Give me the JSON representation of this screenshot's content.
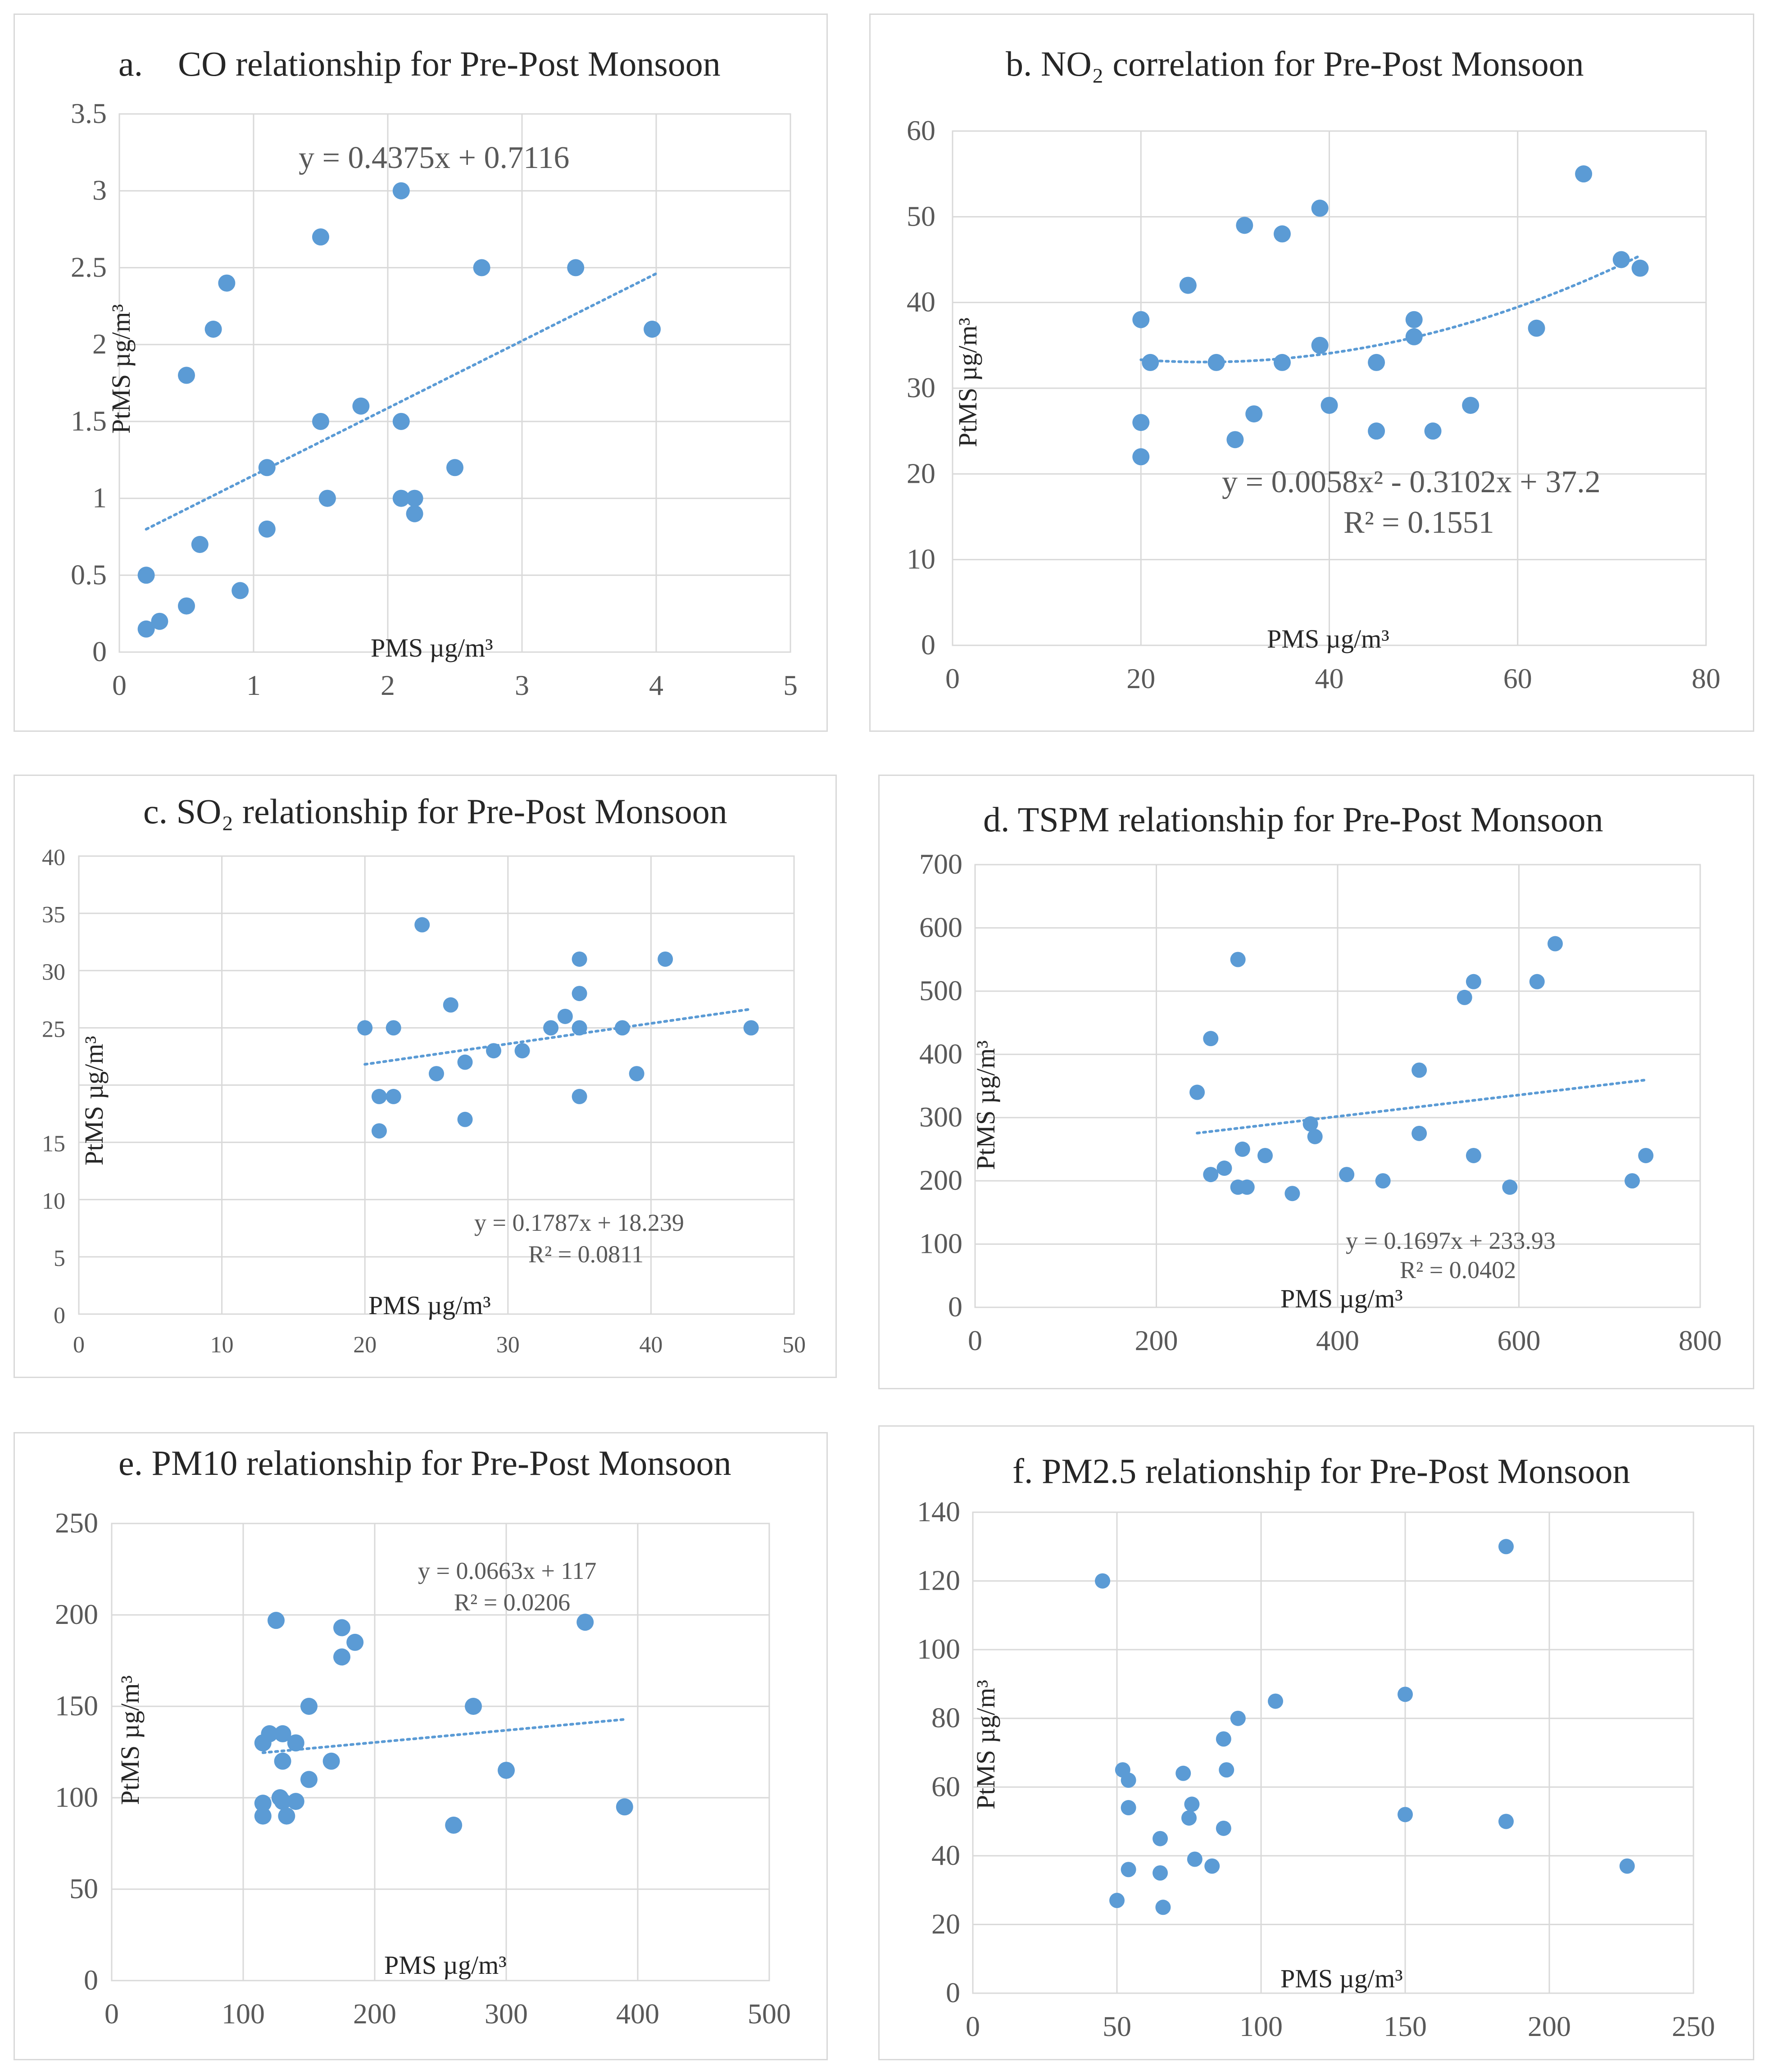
{
  "chart_data": [
    {
      "id": "a",
      "type": "scatter",
      "title": "a.    CO relationship for Pre-Post Monsoon",
      "xlabel": "PMS µg/m³",
      "ylabel": "PtMS µg/m³",
      "xlim": [
        0,
        5
      ],
      "ylim": [
        0,
        3.5
      ],
      "xticks": [
        0,
        1,
        2,
        3,
        4,
        5
      ],
      "yticks": [
        0,
        0.5,
        1,
        1.5,
        2,
        2.5,
        3,
        3.5
      ],
      "xtick_labels": [
        "0",
        "1",
        "2",
        "3",
        "4",
        "5"
      ],
      "ytick_labels": [
        "0",
        "0.5",
        "1",
        "1.5",
        "2",
        "2.5",
        "3",
        "3.5"
      ],
      "trendline": {
        "kind": "linear",
        "coef": [
          0.4375,
          0.7116
        ],
        "x_range": [
          0.2,
          4
        ]
      },
      "equation": "y = 0.4375x + 0.7116",
      "r2": "",
      "points": [
        [
          0.2,
          0.15
        ],
        [
          0.3,
          0.2
        ],
        [
          0.2,
          0.5
        ],
        [
          0.5,
          0.3
        ],
        [
          0.6,
          0.7
        ],
        [
          0.9,
          0.4
        ],
        [
          0.5,
          1.8
        ],
        [
          0.7,
          2.1
        ],
        [
          0.8,
          2.4
        ],
        [
          1.1,
          0.8
        ],
        [
          1.1,
          1.2
        ],
        [
          1.5,
          1.5
        ],
        [
          1.5,
          2.7
        ],
        [
          1.55,
          1.0
        ],
        [
          1.8,
          1.6
        ],
        [
          2.1,
          3.0
        ],
        [
          2.1,
          1.5
        ],
        [
          2.1,
          1.0
        ],
        [
          2.2,
          1.0
        ],
        [
          2.2,
          0.9
        ],
        [
          2.5,
          1.2
        ],
        [
          2.7,
          2.5
        ],
        [
          3.4,
          2.5
        ],
        [
          3.97,
          2.1
        ]
      ]
    },
    {
      "id": "b",
      "type": "scatter",
      "title": "b. NO₂ correlation for Pre-Post Monsoon",
      "xlabel": "PMS µg/m³",
      "ylabel": "PtMS µg/m³",
      "xlim": [
        0,
        80
      ],
      "ylim": [
        0,
        60
      ],
      "xticks": [
        0,
        20,
        40,
        60,
        80
      ],
      "yticks": [
        0,
        10,
        20,
        30,
        40,
        50,
        60
      ],
      "xtick_labels": [
        "0",
        "20",
        "40",
        "60",
        "80"
      ],
      "ytick_labels": [
        "0",
        "10",
        "20",
        "30",
        "40",
        "50",
        "60"
      ],
      "trendline": {
        "kind": "poly2",
        "coef": [
          0.0058,
          -0.3102,
          37.2
        ],
        "x_range": [
          20,
          73
        ]
      },
      "equation": "y = 0.0058x² - 0.3102x + 37.2",
      "r2": "R² = 0.1551",
      "points": [
        [
          20,
          38
        ],
        [
          20,
          26
        ],
        [
          20,
          22
        ],
        [
          21,
          33
        ],
        [
          25,
          42
        ],
        [
          28,
          33
        ],
        [
          30,
          24
        ],
        [
          31,
          49
        ],
        [
          32,
          27
        ],
        [
          35,
          48
        ],
        [
          35,
          33
        ],
        [
          39,
          51
        ],
        [
          39,
          35
        ],
        [
          40,
          28
        ],
        [
          45,
          33
        ],
        [
          45,
          25
        ],
        [
          49,
          38
        ],
        [
          49,
          36
        ],
        [
          51,
          25
        ],
        [
          55,
          28
        ],
        [
          62,
          37
        ],
        [
          67,
          55
        ],
        [
          71,
          45
        ],
        [
          73,
          44
        ]
      ]
    },
    {
      "id": "c",
      "type": "scatter",
      "title": "c. SO₂ relationship for Pre-Post Monsoon",
      "xlabel": "PMS µg/m³",
      "ylabel": "PtMS µg/m³",
      "xlim": [
        0,
        50
      ],
      "ylim": [
        0,
        40
      ],
      "xticks": [
        0,
        10,
        20,
        30,
        40,
        50
      ],
      "yticks": [
        0,
        5,
        10,
        15,
        20,
        25,
        30,
        35,
        40
      ],
      "xtick_labels": [
        "0",
        "10",
        "20",
        "30",
        "40",
        "50"
      ],
      "ytick_labels": [
        "0",
        "5",
        "10",
        "15",
        "",
        "25",
        "30",
        "35",
        "40"
      ],
      "trendline": {
        "kind": "linear",
        "coef": [
          0.1787,
          18.239
        ],
        "x_range": [
          20,
          47
        ]
      },
      "equation": "y = 0.1787x + 18.239",
      "r2": "R² = 0.0811",
      "points": [
        [
          20,
          25
        ],
        [
          21,
          19
        ],
        [
          21,
          16
        ],
        [
          22,
          25
        ],
        [
          22,
          19
        ],
        [
          24,
          34
        ],
        [
          25,
          21
        ],
        [
          26,
          27
        ],
        [
          27,
          22
        ],
        [
          27,
          17
        ],
        [
          29,
          23
        ],
        [
          31,
          23
        ],
        [
          33,
          25
        ],
        [
          34,
          26
        ],
        [
          35,
          31
        ],
        [
          35,
          28
        ],
        [
          35,
          25
        ],
        [
          35,
          19
        ],
        [
          38,
          25
        ],
        [
          39,
          21
        ],
        [
          41,
          31
        ],
        [
          47,
          25
        ]
      ]
    },
    {
      "id": "d",
      "type": "scatter",
      "title": "d. TSPM relationship for Pre-Post Monsoon",
      "xlabel": "PMS µg/m³",
      "ylabel": "PtMS µg/m³",
      "xlim": [
        0,
        800
      ],
      "ylim": [
        0,
        700
      ],
      "xticks": [
        0,
        200,
        400,
        600,
        800
      ],
      "yticks": [
        0,
        100,
        200,
        300,
        400,
        500,
        600,
        700
      ],
      "xtick_labels": [
        "0",
        "200",
        "400",
        "600",
        "800"
      ],
      "ytick_labels": [
        "0",
        "100",
        "200",
        "300",
        "400",
        "500",
        "600",
        "700"
      ],
      "trendline": {
        "kind": "linear",
        "coef": [
          0.1697,
          233.93
        ],
        "x_range": [
          245,
          740
        ]
      },
      "equation": "y = 0.1697x + 233.93",
      "r2": "R² = 0.0402",
      "points": [
        [
          245,
          340
        ],
        [
          260,
          425
        ],
        [
          260,
          210
        ],
        [
          275,
          220
        ],
        [
          290,
          550
        ],
        [
          290,
          190
        ],
        [
          295,
          250
        ],
        [
          300,
          190
        ],
        [
          320,
          240
        ],
        [
          350,
          180
        ],
        [
          370,
          290
        ],
        [
          375,
          270
        ],
        [
          410,
          210
        ],
        [
          450,
          200
        ],
        [
          490,
          375
        ],
        [
          490,
          275
        ],
        [
          540,
          490
        ],
        [
          550,
          515
        ],
        [
          550,
          240
        ],
        [
          590,
          190
        ],
        [
          620,
          515
        ],
        [
          640,
          575
        ],
        [
          725,
          200
        ],
        [
          740,
          240
        ]
      ]
    },
    {
      "id": "e",
      "type": "scatter",
      "title": "e. PM10 relationship for Pre-Post Monsoon",
      "xlabel": "PMS µg/m³",
      "ylabel": "PtMS µg/m³",
      "xlim": [
        0,
        500
      ],
      "ylim": [
        0,
        250
      ],
      "xticks": [
        0,
        100,
        200,
        300,
        400,
        500
      ],
      "yticks": [
        0,
        50,
        100,
        150,
        200,
        250
      ],
      "xtick_labels": [
        "0",
        "100",
        "200",
        "300",
        "400",
        "500"
      ],
      "ytick_labels": [
        "0",
        "50",
        "100",
        "150",
        "200",
        "250"
      ],
      "trendline": {
        "kind": "linear",
        "coef": [
          0.0663,
          117
        ],
        "x_range": [
          115,
          390
        ]
      },
      "equation": "y = 0.0663x + 117",
      "r2": "R² = 0.0206",
      "points": [
        [
          115,
          130
        ],
        [
          115,
          97
        ],
        [
          115,
          90
        ],
        [
          120,
          135
        ],
        [
          125,
          197
        ],
        [
          128,
          100
        ],
        [
          130,
          135
        ],
        [
          130,
          120
        ],
        [
          130,
          98
        ],
        [
          133,
          90
        ],
        [
          140,
          130
        ],
        [
          140,
          98
        ],
        [
          150,
          150
        ],
        [
          150,
          110
        ],
        [
          167,
          120
        ],
        [
          175,
          193
        ],
        [
          175,
          177
        ],
        [
          185,
          185
        ],
        [
          260,
          85
        ],
        [
          275,
          150
        ],
        [
          300,
          115
        ],
        [
          360,
          196
        ],
        [
          390,
          95
        ]
      ]
    },
    {
      "id": "f",
      "type": "scatter",
      "title": "f. PM2.5 relationship for Pre-Post Monsoon",
      "xlabel": "PMS µg/m³",
      "ylabel": "PtMS µg/m³",
      "xlim": [
        0,
        250
      ],
      "ylim": [
        0,
        140
      ],
      "xticks": [
        0,
        50,
        100,
        150,
        200,
        250
      ],
      "yticks": [
        0,
        20,
        40,
        60,
        80,
        100,
        120,
        140
      ],
      "xtick_labels": [
        "0",
        "50",
        "100",
        "150",
        "200",
        "250"
      ],
      "ytick_labels": [
        "0",
        "20",
        "40",
        "60",
        "80",
        "100",
        "120",
        "140"
      ],
      "trendline": null,
      "equation": "",
      "r2": "",
      "points": [
        [
          45,
          120
        ],
        [
          50,
          27
        ],
        [
          52,
          65
        ],
        [
          54,
          62
        ],
        [
          54,
          54
        ],
        [
          54,
          36
        ],
        [
          65,
          45
        ],
        [
          65,
          35
        ],
        [
          66,
          25
        ],
        [
          73,
          64
        ],
        [
          75,
          51
        ],
        [
          76,
          55
        ],
        [
          77,
          39
        ],
        [
          83,
          37
        ],
        [
          87,
          74
        ],
        [
          88,
          65
        ],
        [
          87,
          48
        ],
        [
          92,
          80
        ],
        [
          105,
          85
        ],
        [
          150,
          87
        ],
        [
          150,
          52
        ],
        [
          185,
          130
        ],
        [
          185,
          50
        ],
        [
          227,
          37
        ]
      ]
    }
  ]
}
